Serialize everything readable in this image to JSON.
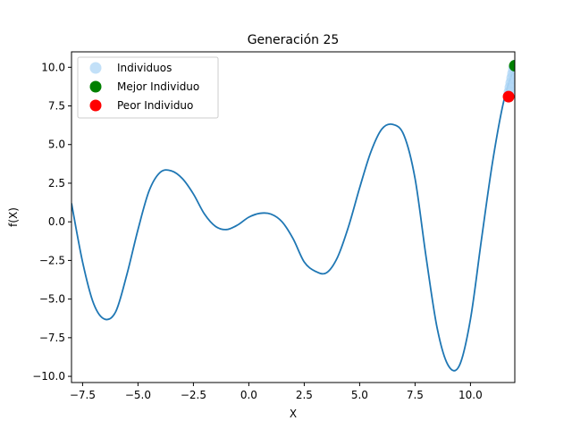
{
  "chart_data": {
    "type": "line",
    "title": "Generación 25",
    "xlabel": "X",
    "ylabel": "f(X)",
    "xlim": [
      -8,
      12
    ],
    "ylim": [
      -10.4,
      11.0
    ],
    "grid": false,
    "legend_position": "top-left",
    "x_ticks": [
      -7.5,
      -5.0,
      -2.5,
      0.0,
      2.5,
      5.0,
      7.5,
      10.0
    ],
    "x_tick_labels": [
      "−7.5",
      "−5.0",
      "−2.5",
      "0.0",
      "2.5",
      "5.0",
      "7.5",
      "10.0"
    ],
    "y_ticks": [
      -10.0,
      -7.5,
      -5.0,
      -2.5,
      0.0,
      2.5,
      5.0,
      7.5,
      10.0
    ],
    "y_tick_labels": [
      "−10.0",
      "−7.5",
      "−5.0",
      "−2.5",
      "0.0",
      "2.5",
      "5.0",
      "7.5",
      "10.0"
    ],
    "series": [
      {
        "kind": "line",
        "color": "#1f77b4",
        "x": [
          -8.0,
          -7.5,
          -7.0,
          -6.5,
          -6.0,
          -5.5,
          -5.0,
          -4.5,
          -4.0,
          -3.5,
          -3.0,
          -2.5,
          -2.0,
          -1.5,
          -1.0,
          -0.5,
          0.0,
          0.5,
          1.0,
          1.5,
          2.0,
          2.5,
          3.0,
          3.5,
          4.0,
          4.5,
          5.0,
          5.5,
          6.0,
          6.5,
          7.0,
          7.5,
          8.0,
          8.5,
          9.0,
          9.5,
          10.0,
          10.5,
          11.0,
          11.5,
          12.0
        ],
        "y": [
          1.2,
          -2.6,
          -5.3,
          -6.3,
          -5.8,
          -3.4,
          -0.5,
          2.0,
          3.2,
          3.3,
          2.8,
          1.8,
          0.5,
          -0.3,
          -0.5,
          -0.2,
          0.3,
          0.55,
          0.5,
          0.0,
          -1.1,
          -2.6,
          -3.2,
          -3.3,
          -2.3,
          -0.3,
          2.2,
          4.5,
          6.0,
          6.3,
          5.6,
          2.8,
          -2.3,
          -6.9,
          -9.3,
          -9.3,
          -6.3,
          -1.1,
          3.9,
          7.8,
          10.1
        ]
      },
      {
        "name": "Individuos",
        "kind": "scatter",
        "color": "#aed6f5",
        "x": [
          11.72,
          11.76,
          11.8,
          11.84,
          11.88,
          11.92,
          11.96,
          12.0
        ],
        "y": [
          8.1,
          8.4,
          8.7,
          9.0,
          9.3,
          9.6,
          9.9,
          10.1
        ]
      },
      {
        "name": "Mejor Individuo",
        "kind": "scatter",
        "color": "#008000",
        "x": [
          12.0
        ],
        "y": [
          10.1
        ]
      },
      {
        "name": "Peor Individuo",
        "kind": "scatter",
        "color": "#ff0000",
        "x": [
          11.72
        ],
        "y": [
          8.1
        ]
      }
    ]
  }
}
